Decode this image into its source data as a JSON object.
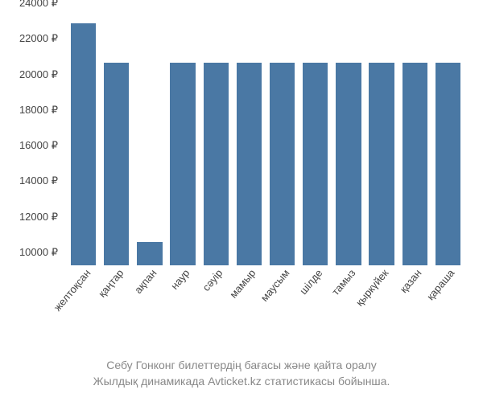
{
  "chart": {
    "type": "bar",
    "categories": [
      "желтоқсан",
      "қаңтар",
      "ақпан",
      "наур",
      "сәуір",
      "мамыр",
      "маусым",
      "шілде",
      "тамыз",
      "қыркүйек",
      "қазан",
      "қараша"
    ],
    "values": [
      23600,
      21400,
      11300,
      21400,
      21400,
      21400,
      21400,
      21400,
      21400,
      21400,
      21400,
      21400
    ],
    "y_ticks": [
      10000,
      12000,
      14000,
      16000,
      18000,
      20000,
      22000,
      24000
    ],
    "y_tick_labels": [
      "10000 ₽",
      "12000 ₽",
      "14000 ₽",
      "16000 ₽",
      "18000 ₽",
      "20000 ₽",
      "22000 ₽",
      "24000 ₽"
    ],
    "ylim": [
      10000,
      24000
    ],
    "bar_color": "#4a78a4",
    "axis_label_color": "#444444",
    "axis_label_fontsize": 13,
    "background_color": "#ffffff",
    "bar_width_ratio": 0.8
  },
  "caption": {
    "line1": "Себу Гонконг билеттердің бағасы және қайта оралу",
    "line2": "Жылдық динамикада Avticket.kz статистикасы бойынша.",
    "color": "#888888",
    "fontsize": 14
  }
}
